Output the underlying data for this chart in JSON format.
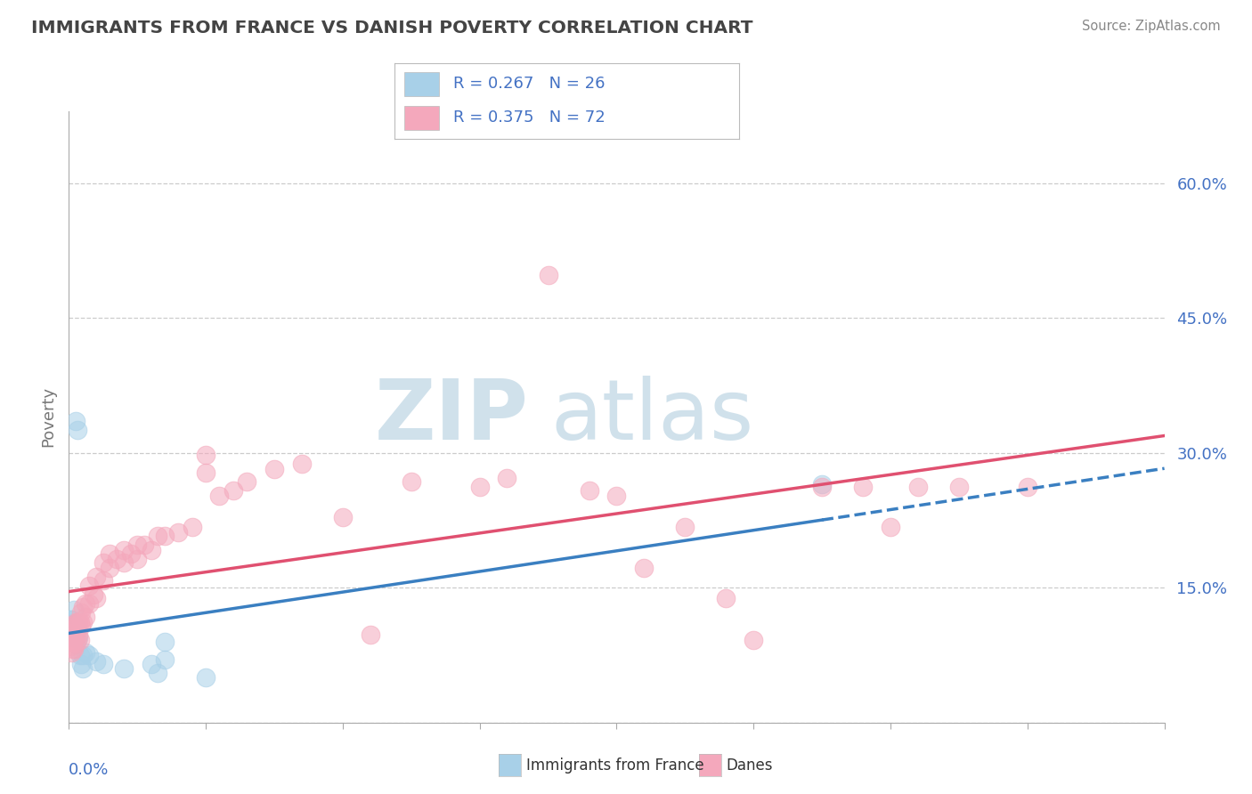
{
  "title": "IMMIGRANTS FROM FRANCE VS DANISH POVERTY CORRELATION CHART",
  "source_text": "Source: ZipAtlas.com",
  "ylabel": "Poverty",
  "yticks": [
    0.0,
    0.15,
    0.3,
    0.45,
    0.6
  ],
  "ytick_labels": [
    "",
    "15.0%",
    "30.0%",
    "45.0%",
    "60.0%"
  ],
  "xmin": 0.0,
  "xmax": 0.8,
  "ymin": 0.0,
  "ymax": 0.68,
  "r_blue": "0.267",
  "n_blue": "26",
  "r_pink": "0.375",
  "n_pink": "72",
  "legend_series": [
    "Immigrants from France",
    "Danes"
  ],
  "blue_color": "#a8d0e8",
  "pink_color": "#f4a8bc",
  "blue_trend_color": "#3a7fc1",
  "pink_trend_color": "#e05070",
  "blue_scatter": [
    [
      0.001,
      0.115
    ],
    [
      0.002,
      0.115
    ],
    [
      0.003,
      0.095
    ],
    [
      0.003,
      0.105
    ],
    [
      0.004,
      0.11
    ],
    [
      0.004,
      0.125
    ],
    [
      0.005,
      0.095
    ],
    [
      0.005,
      0.335
    ],
    [
      0.006,
      0.105
    ],
    [
      0.006,
      0.325
    ],
    [
      0.007,
      0.095
    ],
    [
      0.008,
      0.075
    ],
    [
      0.009,
      0.065
    ],
    [
      0.01,
      0.06
    ],
    [
      0.01,
      0.075
    ],
    [
      0.012,
      0.078
    ],
    [
      0.015,
      0.075
    ],
    [
      0.02,
      0.068
    ],
    [
      0.025,
      0.065
    ],
    [
      0.04,
      0.06
    ],
    [
      0.06,
      0.065
    ],
    [
      0.065,
      0.055
    ],
    [
      0.07,
      0.07
    ],
    [
      0.07,
      0.09
    ],
    [
      0.1,
      0.05
    ],
    [
      0.55,
      0.265
    ]
  ],
  "pink_scatter": [
    [
      0.001,
      0.085
    ],
    [
      0.001,
      0.095
    ],
    [
      0.002,
      0.078
    ],
    [
      0.002,
      0.092
    ],
    [
      0.002,
      0.108
    ],
    [
      0.003,
      0.082
    ],
    [
      0.003,
      0.09
    ],
    [
      0.003,
      0.1
    ],
    [
      0.004,
      0.082
    ],
    [
      0.004,
      0.092
    ],
    [
      0.004,
      0.105
    ],
    [
      0.005,
      0.088
    ],
    [
      0.005,
      0.098
    ],
    [
      0.005,
      0.112
    ],
    [
      0.006,
      0.092
    ],
    [
      0.006,
      0.112
    ],
    [
      0.007,
      0.098
    ],
    [
      0.007,
      0.112
    ],
    [
      0.008,
      0.092
    ],
    [
      0.008,
      0.112
    ],
    [
      0.009,
      0.108
    ],
    [
      0.009,
      0.122
    ],
    [
      0.01,
      0.112
    ],
    [
      0.01,
      0.128
    ],
    [
      0.012,
      0.118
    ],
    [
      0.012,
      0.132
    ],
    [
      0.015,
      0.132
    ],
    [
      0.015,
      0.152
    ],
    [
      0.018,
      0.142
    ],
    [
      0.02,
      0.138
    ],
    [
      0.02,
      0.162
    ],
    [
      0.025,
      0.158
    ],
    [
      0.025,
      0.178
    ],
    [
      0.03,
      0.172
    ],
    [
      0.03,
      0.188
    ],
    [
      0.035,
      0.182
    ],
    [
      0.04,
      0.178
    ],
    [
      0.04,
      0.192
    ],
    [
      0.045,
      0.188
    ],
    [
      0.05,
      0.182
    ],
    [
      0.05,
      0.198
    ],
    [
      0.055,
      0.198
    ],
    [
      0.06,
      0.192
    ],
    [
      0.065,
      0.208
    ],
    [
      0.07,
      0.208
    ],
    [
      0.08,
      0.212
    ],
    [
      0.09,
      0.218
    ],
    [
      0.1,
      0.278
    ],
    [
      0.1,
      0.298
    ],
    [
      0.11,
      0.252
    ],
    [
      0.12,
      0.258
    ],
    [
      0.13,
      0.268
    ],
    [
      0.15,
      0.282
    ],
    [
      0.17,
      0.288
    ],
    [
      0.2,
      0.228
    ],
    [
      0.22,
      0.098
    ],
    [
      0.25,
      0.268
    ],
    [
      0.3,
      0.262
    ],
    [
      0.32,
      0.272
    ],
    [
      0.35,
      0.498
    ],
    [
      0.38,
      0.258
    ],
    [
      0.4,
      0.252
    ],
    [
      0.42,
      0.172
    ],
    [
      0.45,
      0.218
    ],
    [
      0.48,
      0.138
    ],
    [
      0.5,
      0.092
    ],
    [
      0.55,
      0.262
    ],
    [
      0.58,
      0.262
    ],
    [
      0.6,
      0.218
    ],
    [
      0.62,
      0.262
    ],
    [
      0.65,
      0.262
    ],
    [
      0.7,
      0.262
    ]
  ],
  "background_color": "#ffffff",
  "grid_color": "#cccccc",
  "title_color": "#444444",
  "axis_label_color": "#4472c4",
  "watermark_zip": "ZIP",
  "watermark_atlas": "atlas",
  "watermark_color": "#c8dce8"
}
